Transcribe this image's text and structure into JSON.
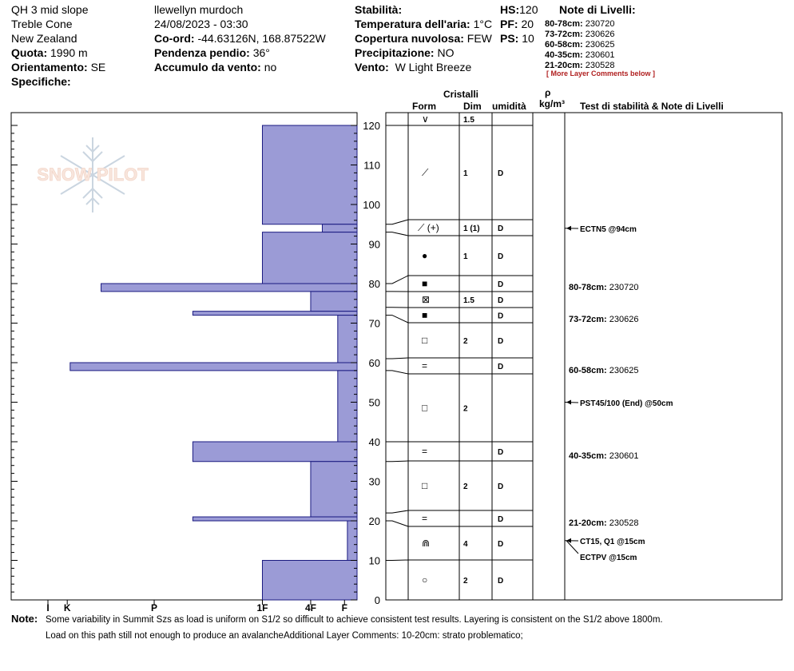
{
  "header": {
    "col1": {
      "location": "QH 3 mid slope",
      "area": "Treble Cone",
      "country": "New Zealand",
      "elevation_label": "Quota:",
      "elevation_value": "1990 m",
      "aspect_label": "Orientamento:",
      "aspect_value": "SE",
      "specifics_label": "Specifiche:"
    },
    "col2": {
      "observer": "llewellyn murdoch",
      "datetime": "24/08/2023 - 03:30",
      "coords_label": "Co-ord:",
      "coords_value": "-44.63126N, 168.87522W",
      "slope_label": "Pendenza pendio:",
      "slope_value": "36°",
      "wind_loading_label": "Accumulo da vento:",
      "wind_loading_value": "no"
    },
    "col3": {
      "stability_label": "Stabilità:",
      "air_temp_label": "Temperatura dell'aria:",
      "air_temp_value": "1°C",
      "cloud_label": "Copertura nuvolosa:",
      "cloud_value": "FEW",
      "precip_label": "Precipitazione:",
      "precip_value": "NO",
      "wind_label": "Vento:",
      "wind_value": "W Light Breeze"
    },
    "col4": {
      "hs_label": "HS:",
      "hs_value": "120",
      "pf_label": "PF:",
      "pf_value": "20",
      "ps_label": "PS:",
      "ps_value": "10"
    },
    "layer_notes": {
      "title": "Note di Livelli:",
      "items": [
        {
          "range": "80-78cm:",
          "value": "230720"
        },
        {
          "range": "73-72cm:",
          "value": "230626"
        },
        {
          "range": "60-58cm:",
          "value": "230625"
        },
        {
          "range": "40-35cm:",
          "value": "230601"
        },
        {
          "range": "21-20cm:",
          "value": "230528"
        }
      ],
      "more": "[ More Layer Comments below ]"
    }
  },
  "columns": {
    "crystals": "Cristalli",
    "form": "Form",
    "dim": "Dim",
    "humidity": "umidità",
    "rho": "ρ",
    "density_unit": "kg/m³",
    "tests": "Test di stabilità & Note di Livelli"
  },
  "watermark": "SNOW PILOT",
  "chart_data": {
    "type": "bar",
    "orientation": "horizontal",
    "description_axis": "hand hardness",
    "height_axis": {
      "min": 0,
      "max": 120,
      "ticks": [
        0,
        10,
        20,
        30,
        40,
        50,
        60,
        70,
        80,
        90,
        100,
        110,
        120
      ]
    },
    "hardness_ticks": [
      "I",
      "K",
      "P",
      "1F",
      "4F",
      "F"
    ],
    "hardness_tick_values": [
      3.2,
      3.0,
      2.1,
      0.98,
      0.48,
      0.13
    ],
    "layers": [
      {
        "top": 120,
        "bottom": 95,
        "hardness": 0.98
      },
      {
        "top": 95,
        "bottom": 93,
        "hardness": 0.36
      },
      {
        "top": 93,
        "bottom": 80,
        "hardness": 0.98
      },
      {
        "top": 80,
        "bottom": 78,
        "hardness": 2.65
      },
      {
        "top": 78,
        "bottom": 73,
        "hardness": 0.48
      },
      {
        "top": 73,
        "bottom": 72,
        "hardness": 1.7
      },
      {
        "top": 72,
        "bottom": 60,
        "hardness": 0.2
      },
      {
        "top": 60,
        "bottom": 58,
        "hardness": 2.97
      },
      {
        "top": 58,
        "bottom": 40,
        "hardness": 0.2
      },
      {
        "top": 40,
        "bottom": 35,
        "hardness": 1.7
      },
      {
        "top": 35,
        "bottom": 21,
        "hardness": 0.48
      },
      {
        "top": 21,
        "bottom": 20,
        "hardness": 1.7
      },
      {
        "top": 20,
        "bottom": 10,
        "hardness": 0.1
      },
      {
        "top": 10,
        "bottom": 0,
        "hardness": 0.98
      }
    ],
    "layer_rows": [
      {
        "top": 120,
        "bottom": 122,
        "form": "∨",
        "dim": "1.5",
        "hum": ""
      },
      {
        "top": 95,
        "bottom": 120,
        "form": "⟋",
        "dim": "1",
        "hum": "D"
      },
      {
        "top": 93,
        "bottom": 95,
        "form": "⟋ (+)",
        "dim": "1 (1)",
        "hum": "D"
      },
      {
        "top": 80,
        "bottom": 93,
        "form": "●",
        "dim": "1",
        "hum": "D"
      },
      {
        "top": 78,
        "bottom": 80,
        "form": "■",
        "dim": "",
        "hum": "D"
      },
      {
        "top": 74,
        "bottom": 78,
        "form": "⊠",
        "dim": "1.5",
        "hum": "D"
      },
      {
        "top": 70,
        "bottom": 74,
        "form": "■",
        "dim": "",
        "hum": "D"
      },
      {
        "top": 61,
        "bottom": 70,
        "form": "□",
        "dim": "2",
        "hum": "D"
      },
      {
        "top": 57,
        "bottom": 61,
        "form": "=",
        "dim": "",
        "hum": "D"
      },
      {
        "top": 40,
        "bottom": 57,
        "form": "□",
        "dim": "2",
        "hum": ""
      },
      {
        "top": 35,
        "bottom": 40,
        "form": "=",
        "dim": "",
        "hum": "D"
      },
      {
        "top": 22,
        "bottom": 35,
        "form": "□",
        "dim": "2",
        "hum": "D"
      },
      {
        "top": 18,
        "bottom": 22,
        "form": "=",
        "dim": "",
        "hum": "D"
      },
      {
        "top": 10,
        "bottom": 18,
        "form": "⋒",
        "dim": "4",
        "hum": "D"
      },
      {
        "top": 0,
        "bottom": 10,
        "form": "○",
        "dim": "2",
        "hum": "D"
      }
    ],
    "tests": [
      {
        "height": 94,
        "label": "ECTN5 @94cm"
      },
      {
        "height": 50,
        "label": "PST45/100 (End) @50cm"
      },
      {
        "height": 15,
        "label": "CT15, Q1 @15cm"
      },
      {
        "height": 15,
        "label": "ECTPV @15cm"
      }
    ],
    "notes": [
      {
        "height": 79,
        "range": "80-78cm:",
        "value": "230720"
      },
      {
        "height": 72.5,
        "range": "73-72cm:",
        "value": "230626"
      },
      {
        "height": 59,
        "range": "60-58cm:",
        "value": "230625"
      },
      {
        "height": 36,
        "range": "40-35cm:",
        "value": "230601"
      },
      {
        "height": 20,
        "range": "21-20cm:",
        "value": "230528"
      }
    ],
    "bar_color": "#9b9bd6"
  },
  "footer": {
    "note_label": "Note:",
    "line1": "Some variability in Summit Szs as load is uniform on S1/2 so difficult to achieve consistent test results. Layering is consistent on the S1/2 above 1800m.",
    "line2": "Load on this path still not enough to produce an avalancheAdditional Layer Comments: 10-20cm: strato problematico;"
  }
}
